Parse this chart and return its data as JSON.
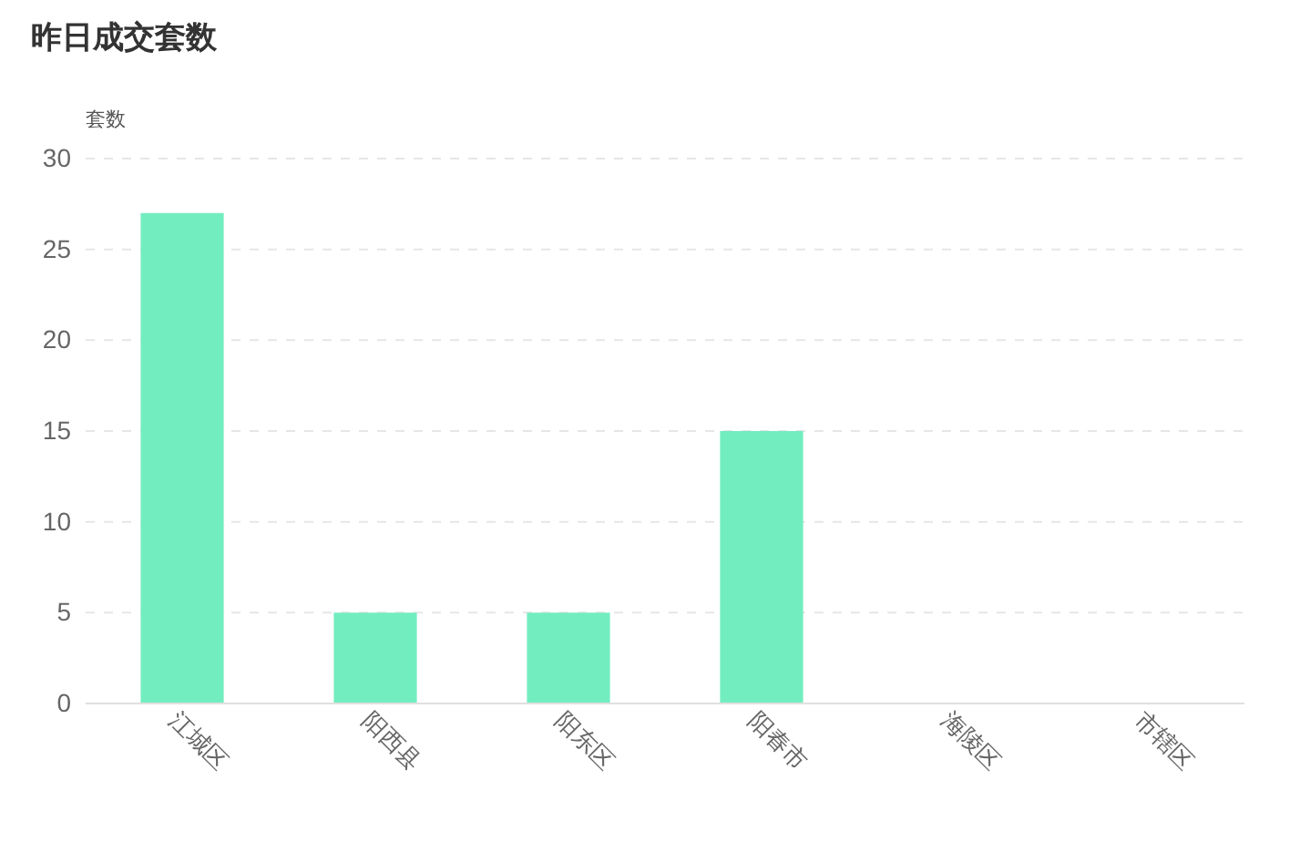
{
  "chart_data": {
    "type": "bar",
    "title": "昨日成交套数",
    "ylabel": "套数",
    "categories": [
      "江城区",
      "阳西县",
      "阳东区",
      "阳春市",
      "海陵区",
      "市辖区"
    ],
    "values": [
      27,
      5,
      5,
      15,
      0,
      0
    ],
    "color": "#72edc0",
    "ylim": [
      0,
      30
    ],
    "yticks": [
      0,
      5,
      10,
      15,
      20,
      25,
      30
    ],
    "grid": "y"
  }
}
